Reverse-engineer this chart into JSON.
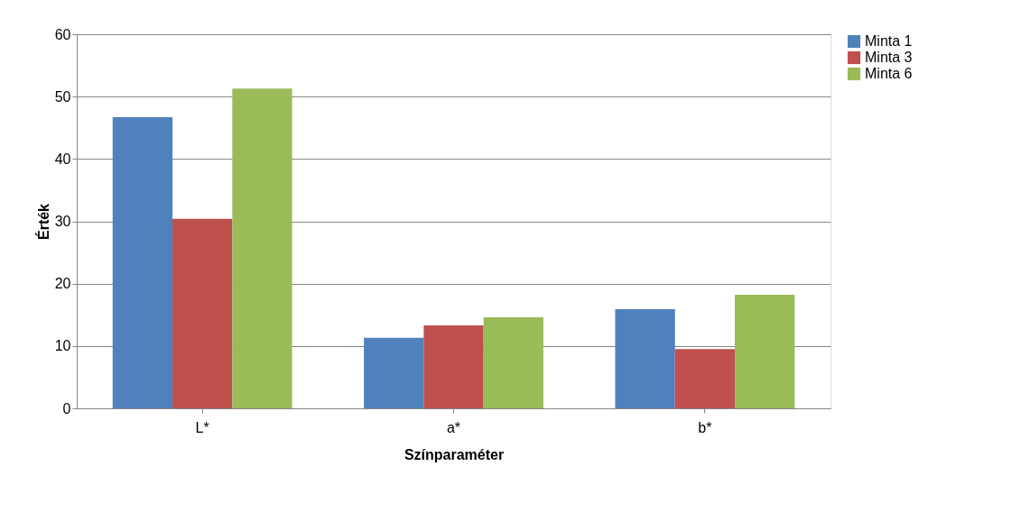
{
  "chart_data": {
    "type": "bar",
    "xlabel": "Színparaméter",
    "ylabel": "Érték",
    "categories": [
      "L*",
      "a*",
      "b*"
    ],
    "series": [
      {
        "name": "Minta 1",
        "color": "#4f81bd",
        "values": [
          46.7,
          11.3,
          15.9
        ]
      },
      {
        "name": "Minta 3",
        "color": "#c0504d",
        "values": [
          30.4,
          13.3,
          9.5
        ]
      },
      {
        "name": "Minta 6",
        "color": "#9bbb59",
        "values": [
          51.3,
          14.6,
          18.2
        ]
      }
    ],
    "ylim": [
      0,
      60
    ],
    "yticks": [
      0,
      10,
      20,
      30,
      40,
      50,
      60
    ],
    "grid": "y",
    "legend": "right"
  }
}
